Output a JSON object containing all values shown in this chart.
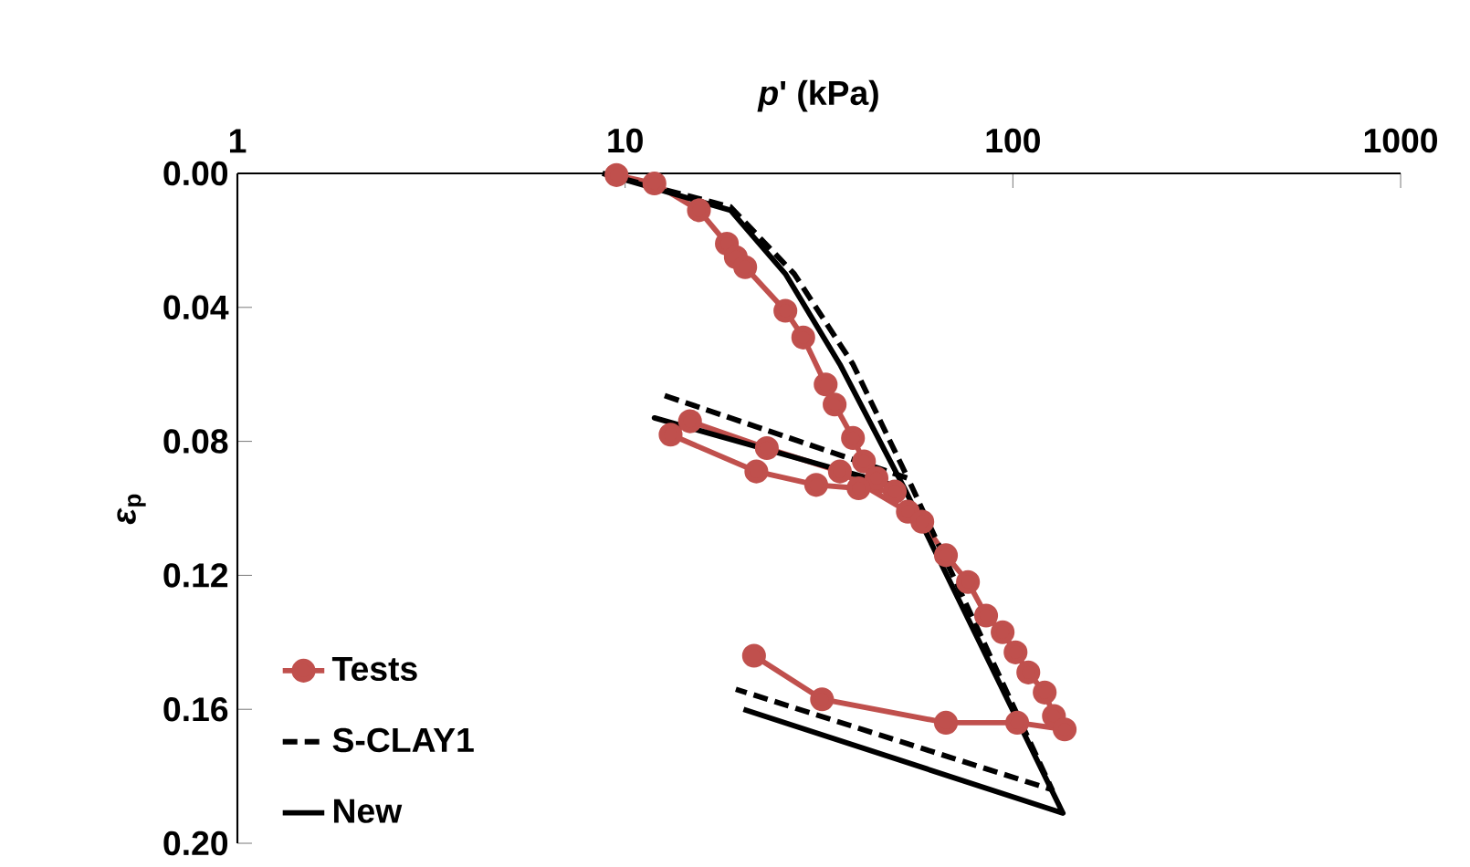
{
  "chart_data": {
    "type": "line",
    "xlabel": "*p*' (kPa)",
    "ylabel": "*ε*$_{p}$",
    "log": "x",
    "xlim": [
      1,
      1000
    ],
    "xticks": [
      1,
      10,
      100,
      1000
    ],
    "ylim": [
      0.2,
      0
    ],
    "yticks": [
      {
        "value": 0,
        "label": "0.00"
      },
      {
        "value": 0.04,
        "label": "0.04"
      },
      {
        "value": 0.08,
        "label": "0.08"
      },
      {
        "value": 0.12,
        "label": "0.12"
      },
      {
        "value": 0.16,
        "label": "0.16"
      },
      {
        "value": 0.2,
        "label": "0.20"
      }
    ],
    "legend": "bottom left",
    "grid": false,
    "series": [
      {
        "name": "Tests",
        "color": "#c0504d",
        "marker": "circle",
        "line_style": "solid",
        "x": [
          9.5,
          11.9,
          15.5,
          18.3,
          19.3,
          20.4,
          25.9,
          28.8,
          32.9,
          34.7,
          38.7,
          41.3,
          44.5,
          49.6,
          40,
          31.1,
          21.8,
          13.1,
          14.7,
          23.2,
          35.8,
          53.6,
          58.4,
          67.2,
          76.6,
          85.3,
          94.1,
          101.6,
          109.6,
          120.8,
          127.6,
          136,
          102.6,
          67.2,
          32.2,
          21.5
        ],
        "values": [
          0.0005,
          0.003,
          0.011,
          0.021,
          0.025,
          0.028,
          0.041,
          0.049,
          0.063,
          0.069,
          0.079,
          0.086,
          0.091,
          0.095,
          0.094,
          0.093,
          0.089,
          0.078,
          0.074,
          0.082,
          0.089,
          0.101,
          0.104,
          0.114,
          0.122,
          0.132,
          0.137,
          0.143,
          0.149,
          0.155,
          0.162,
          0.166,
          0.164,
          0.164,
          0.157,
          0.144
        ]
      },
      {
        "name": "S-CLAY1",
        "color": "#000000",
        "marker": "none",
        "line_style": "dashed",
        "x": [
          8.75,
          18.7,
          27.3,
          38.7,
          53.6,
          12.4,
          53.6,
          126.2,
          19.3
        ],
        "values": [
          0,
          0.01,
          0.03,
          0.057,
          0.091,
          0.066,
          0.091,
          0.184,
          0.154
        ]
      },
      {
        "name": "New",
        "color": "#000000",
        "marker": "none",
        "line_style": "solid",
        "x": [
          8.75,
          18.7,
          25.9,
          35.8,
          52.5,
          11.9,
          52.5,
          134.6,
          20.2
        ],
        "values": [
          0,
          0.011,
          0.03,
          0.057,
          0.094,
          0.073,
          0.094,
          0.191,
          0.16
        ]
      }
    ]
  }
}
